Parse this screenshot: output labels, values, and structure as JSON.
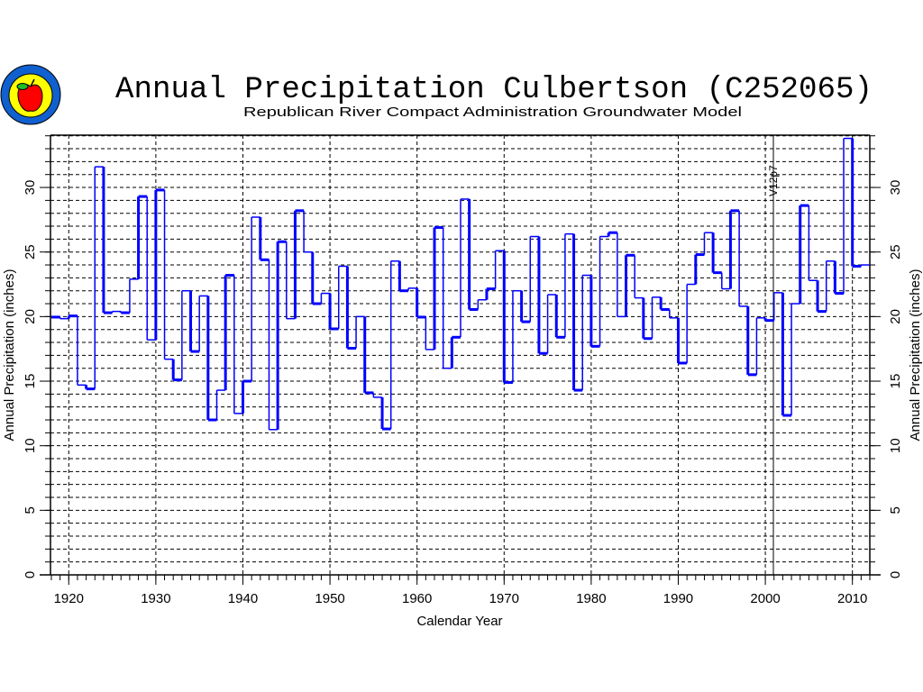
{
  "logo": {
    "text": "Republican River Compact",
    "colors": {
      "ring": "#1060d0",
      "inner": "#ffff00",
      "apple": "#ff0000",
      "leaf": "#22bb22"
    }
  },
  "chart_data": {
    "type": "line",
    "style": "step",
    "title": "Annual Precipitation Culbertson (C252065)",
    "subtitle": "Republican River Compact Administration Groundwater Model",
    "xlabel": "Calendar Year",
    "ylabel": "Annual Precipitation (inches)",
    "ylabel_right": "Annual Precipitation (inches)",
    "xlim": [
      1917.9,
      2012.0
    ],
    "ylim": [
      0,
      34.05
    ],
    "xticks": [
      1920,
      1930,
      1940,
      1950,
      1960,
      1970,
      1980,
      1990,
      2000,
      2010
    ],
    "yticks": [
      0,
      5,
      10,
      15,
      20,
      25,
      30
    ],
    "grid": true,
    "line_color": "#0000ff",
    "marker_line": {
      "x": 2001,
      "label": "V12p7"
    },
    "series": [
      {
        "name": "Annual Precipitation",
        "x": [
          1918,
          1919,
          1920,
          1921,
          1922,
          1923,
          1924,
          1925,
          1926,
          1927,
          1928,
          1929,
          1930,
          1931,
          1932,
          1933,
          1934,
          1935,
          1936,
          1937,
          1938,
          1939,
          1940,
          1941,
          1942,
          1943,
          1944,
          1945,
          1946,
          1947,
          1948,
          1949,
          1950,
          1951,
          1952,
          1953,
          1954,
          1955,
          1956,
          1957,
          1958,
          1959,
          1960,
          1961,
          1962,
          1963,
          1964,
          1965,
          1966,
          1967,
          1968,
          1969,
          1970,
          1971,
          1972,
          1973,
          1974,
          1975,
          1976,
          1977,
          1978,
          1979,
          1980,
          1981,
          1982,
          1983,
          1984,
          1985,
          1986,
          1987,
          1988,
          1989,
          1990,
          1991,
          1992,
          1993,
          1994,
          1995,
          1996,
          1997,
          1998,
          1999,
          2000,
          2001,
          2002,
          2003,
          2004,
          2005,
          2006,
          2007,
          2008,
          2009,
          2010,
          2011
        ],
        "values": [
          19.96,
          19.84,
          20.05,
          14.7,
          14.4,
          31.6,
          20.3,
          20.4,
          20.3,
          22.9,
          29.3,
          18.2,
          29.8,
          16.7,
          15.1,
          22.0,
          17.3,
          21.6,
          12.0,
          14.3,
          23.2,
          12.5,
          15.0,
          27.7,
          24.4,
          11.25,
          25.8,
          19.84,
          28.2,
          25.0,
          21.0,
          21.8,
          19.05,
          23.9,
          17.55,
          20.0,
          14.1,
          13.75,
          11.3,
          24.3,
          22.0,
          22.2,
          19.96,
          17.45,
          26.9,
          16.0,
          18.4,
          29.1,
          20.55,
          21.3,
          22.15,
          25.1,
          14.9,
          22.0,
          19.6,
          26.2,
          17.15,
          21.7,
          18.4,
          26.4,
          14.3,
          23.2,
          17.7,
          26.2,
          26.5,
          20.0,
          24.75,
          21.45,
          18.3,
          21.5,
          20.55,
          19.9,
          16.4,
          22.5,
          24.8,
          26.5,
          23.4,
          22.15,
          28.2,
          20.8,
          15.5,
          19.9,
          19.7,
          21.85,
          12.35,
          21.0,
          28.6,
          22.8,
          20.4,
          24.3,
          21.8,
          33.8,
          23.9,
          24.0
        ]
      }
    ]
  }
}
